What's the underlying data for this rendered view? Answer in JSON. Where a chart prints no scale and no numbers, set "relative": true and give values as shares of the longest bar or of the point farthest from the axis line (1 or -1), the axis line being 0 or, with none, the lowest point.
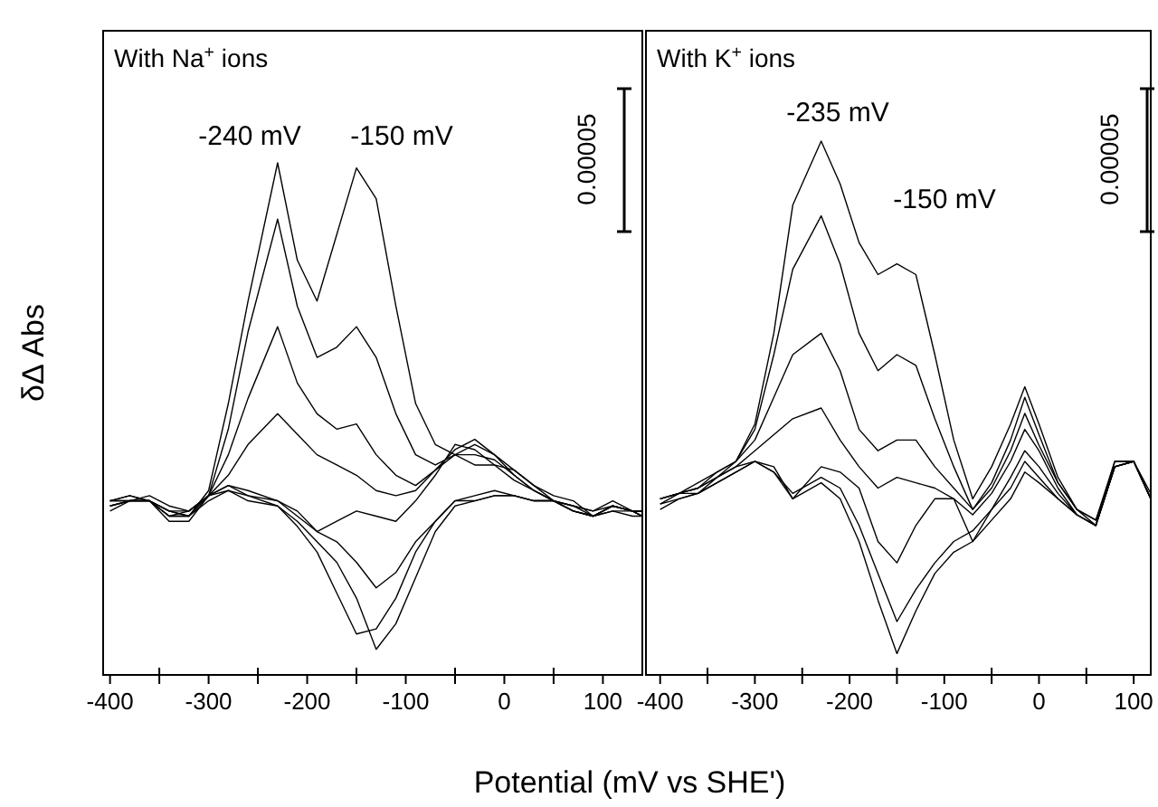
{
  "chart_data": [
    {
      "type": "line",
      "title": "With Na$^{+}$ ions",
      "xlabel": "Potential (mV vs SHE')",
      "ylabel": "δΔ Abs",
      "relative": true,
      "grid": false,
      "marker": "none",
      "line_style": "solid",
      "xlim": [
        -407,
        140
      ],
      "xticks": [
        -400,
        {
          "value": -350,
          "label": null
        },
        -300,
        {
          "value": -250,
          "label": null
        },
        -200,
        {
          "value": -150,
          "label": null
        },
        -100,
        {
          "value": -50,
          "label": null
        },
        0,
        {
          "value": 50,
          "label": null
        },
        100
      ],
      "x": [
        -400,
        -380,
        -360,
        -340,
        -320,
        -300,
        -280,
        -260,
        -230,
        -210,
        -190,
        -170,
        -150,
        -130,
        -110,
        -90,
        -70,
        -50,
        -30,
        -10,
        10,
        30,
        50,
        70,
        90,
        110,
        130,
        140
      ],
      "annotations": [
        "-240 mV",
        "-150 mV",
        "0.00005"
      ],
      "series": [
        {
          "color": "#000000",
          "values": [
            0.32,
            0.34,
            0.34,
            0.31,
            0.31,
            0.36,
            0.53,
            0.73,
            1,
            0.81,
            0.73,
            0.86,
            0.99,
            0.93,
            0.72,
            0.53,
            0.45,
            0.43,
            0.41,
            0.41,
            0.4,
            0.37,
            0.35,
            0.34,
            0.31,
            0.33,
            0.32,
            0.32
          ]
        },
        {
          "color": "#000000",
          "values": [
            0.33,
            0.34,
            0.34,
            0.3,
            0.3,
            0.35,
            0.48,
            0.67,
            0.89,
            0.72,
            0.62,
            0.64,
            0.68,
            0.62,
            0.51,
            0.43,
            0.41,
            0.43,
            0.43,
            0.42,
            0.39,
            0.36,
            0.34,
            0.33,
            0.31,
            0.32,
            0.31,
            0.31
          ]
        },
        {
          "color": "#000000",
          "values": [
            0.34,
            0.35,
            0.34,
            0.31,
            0.32,
            0.35,
            0.43,
            0.54,
            0.68,
            0.57,
            0.51,
            0.48,
            0.49,
            0.43,
            0.39,
            0.37,
            0.4,
            0.43,
            0.45,
            0.43,
            0.4,
            0.37,
            0.34,
            0.33,
            0.32,
            0.33,
            0.32,
            0.31
          ]
        },
        {
          "color": "#000000",
          "values": [
            0.34,
            0.35,
            0.34,
            0.32,
            0.32,
            0.35,
            0.39,
            0.45,
            0.51,
            0.47,
            0.43,
            0.41,
            0.39,
            0.36,
            0.35,
            0.36,
            0.4,
            0.44,
            0.46,
            0.43,
            0.39,
            0.36,
            0.34,
            0.33,
            0.32,
            0.34,
            0.32,
            0.31
          ]
        },
        {
          "color": "#000000",
          "values": [
            0.34,
            0.34,
            0.35,
            0.33,
            0.32,
            0.35,
            0.37,
            0.36,
            0.34,
            0.32,
            0.28,
            0.3,
            0.32,
            0.31,
            0.3,
            0.34,
            0.39,
            0.45,
            0.44,
            0.41,
            0.38,
            0.36,
            0.34,
            0.32,
            0.31,
            0.33,
            0.32,
            0.32
          ]
        },
        {
          "color": "#000000",
          "values": [
            0.34,
            0.34,
            0.34,
            0.32,
            0.31,
            0.35,
            0.36,
            0.35,
            0.34,
            0.31,
            0.28,
            0.26,
            0.22,
            0.17,
            0.2,
            0.26,
            0.3,
            0.34,
            0.35,
            0.36,
            0.35,
            0.34,
            0.34,
            0.32,
            0.31,
            0.33,
            0.32,
            0.32
          ]
        },
        {
          "color": "#000000",
          "values": [
            0.33,
            0.34,
            0.34,
            0.31,
            0.31,
            0.34,
            0.36,
            0.34,
            0.33,
            0.29,
            0.24,
            0.16,
            0.08,
            0.09,
            0.15,
            0.24,
            0.3,
            0.34,
            0.34,
            0.35,
            0.35,
            0.34,
            0.34,
            0.32,
            0.31,
            0.32,
            0.32,
            0.31
          ]
        },
        {
          "color": "#000000",
          "values": [
            0.33,
            0.34,
            0.34,
            0.32,
            0.31,
            0.35,
            0.37,
            0.35,
            0.33,
            0.3,
            0.26,
            0.22,
            0.15,
            0.05,
            0.1,
            0.19,
            0.28,
            0.33,
            0.34,
            0.35,
            0.35,
            0.34,
            0.34,
            0.32,
            0.31,
            0.33,
            0.32,
            0.32
          ]
        }
      ]
    },
    {
      "type": "line",
      "title": "With K$^{+}$ ions",
      "relative": true,
      "grid": false,
      "marker": "none",
      "line_style": "solid",
      "xlim": [
        -415,
        118
      ],
      "xticks": [
        -400,
        {
          "value": -350,
          "label": null
        },
        -300,
        {
          "value": -250,
          "label": null
        },
        -200,
        {
          "value": -150,
          "label": null
        },
        -100,
        {
          "value": -50,
          "label": null
        },
        0,
        {
          "value": 50,
          "label": null
        },
        100
      ],
      "x": [
        -400,
        -380,
        -360,
        -340,
        -320,
        -300,
        -280,
        -260,
        -230,
        -210,
        -190,
        -170,
        -150,
        -130,
        -110,
        -90,
        -70,
        -50,
        -30,
        -15,
        0,
        20,
        40,
        60,
        80,
        100,
        118
      ],
      "annotations": [
        "-235 mV",
        "-150 mV",
        "0.00005"
      ],
      "series": [
        {
          "color": "#000000",
          "values": [
            0.33,
            0.34,
            0.35,
            0.37,
            0.4,
            0.47,
            0.64,
            0.88,
            1,
            0.92,
            0.81,
            0.75,
            0.77,
            0.75,
            0.6,
            0.44,
            0.33,
            0.39,
            0.47,
            0.54,
            0.47,
            0.37,
            0.31,
            0.28,
            0.4,
            0.4,
            0.33
          ]
        },
        {
          "color": "#000000",
          "values": [
            0.32,
            0.34,
            0.35,
            0.38,
            0.4,
            0.46,
            0.6,
            0.76,
            0.86,
            0.77,
            0.64,
            0.57,
            0.6,
            0.58,
            0.48,
            0.39,
            0.31,
            0.36,
            0.44,
            0.52,
            0.45,
            0.36,
            0.31,
            0.29,
            0.4,
            0.4,
            0.33
          ]
        },
        {
          "color": "#000000",
          "values": [
            0.33,
            0.34,
            0.36,
            0.38,
            0.4,
            0.44,
            0.52,
            0.6,
            0.64,
            0.57,
            0.46,
            0.42,
            0.44,
            0.44,
            0.39,
            0.35,
            0.31,
            0.35,
            0.42,
            0.49,
            0.43,
            0.36,
            0.31,
            0.29,
            0.39,
            0.4,
            0.33
          ]
        },
        {
          "color": "#000000",
          "values": [
            0.31,
            0.33,
            0.34,
            0.37,
            0.39,
            0.42,
            0.45,
            0.48,
            0.5,
            0.44,
            0.39,
            0.35,
            0.37,
            0.36,
            0.35,
            0.33,
            0.3,
            0.34,
            0.4,
            0.46,
            0.42,
            0.35,
            0.3,
            0.28,
            0.39,
            0.4,
            0.34
          ]
        },
        {
          "color": "#000000",
          "values": [
            0.33,
            0.34,
            0.35,
            0.37,
            0.39,
            0.4,
            0.39,
            0.33,
            0.39,
            0.38,
            0.35,
            0.25,
            0.21,
            0.28,
            0.33,
            0.33,
            0.25,
            0.31,
            0.37,
            0.42,
            0.39,
            0.34,
            0.3,
            0.28,
            0.39,
            0.4,
            0.33
          ]
        },
        {
          "color": "#000000",
          "values": [
            0.32,
            0.33,
            0.34,
            0.36,
            0.38,
            0.4,
            0.38,
            0.34,
            0.37,
            0.35,
            0.28,
            0.19,
            0.1,
            0.16,
            0.21,
            0.25,
            0.27,
            0.31,
            0.35,
            0.4,
            0.37,
            0.33,
            0.3,
            0.28,
            0.39,
            0.4,
            0.33
          ]
        },
        {
          "color": "#000000",
          "values": [
            0.33,
            0.34,
            0.34,
            0.36,
            0.38,
            0.4,
            0.38,
            0.33,
            0.36,
            0.33,
            0.25,
            0.14,
            0.04,
            0.12,
            0.19,
            0.23,
            0.25,
            0.29,
            0.33,
            0.38,
            0.36,
            0.33,
            0.3,
            0.28,
            0.39,
            0.4,
            0.33
          ]
        }
      ]
    }
  ]
}
